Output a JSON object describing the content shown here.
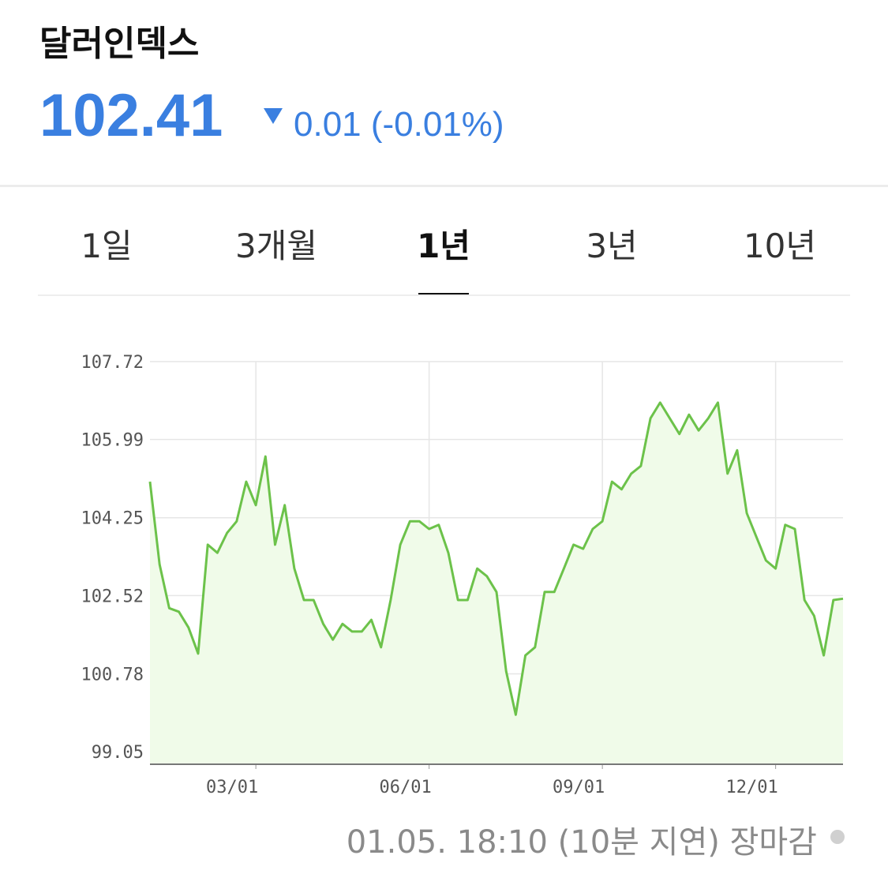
{
  "header": {
    "title": "달러인덱스",
    "price": "102.41",
    "change": "0.01 (-0.01%)"
  },
  "tabs": [
    "1일",
    "3개월",
    "1년",
    "3년",
    "10년"
  ],
  "selected_tab": 2,
  "chart_data": {
    "type": "area",
    "categories": [
      null,
      null,
      null,
      null,
      null,
      null,
      null,
      null,
      null,
      null,
      null,
      "03/01",
      null,
      null,
      null,
      null,
      null,
      null,
      null,
      null,
      null,
      null,
      null,
      null,
      null,
      null,
      null,
      null,
      null,
      "06/01",
      null,
      null,
      null,
      null,
      null,
      null,
      null,
      null,
      null,
      null,
      null,
      null,
      null,
      null,
      null,
      null,
      null,
      "09/01",
      null,
      null,
      null,
      null,
      null,
      null,
      null,
      null,
      null,
      null,
      null,
      null,
      null,
      null,
      null,
      null,
      null,
      "12/01",
      null,
      null,
      null,
      null,
      null,
      null,
      null
    ],
    "values": [
      105.05,
      103.21,
      102.24,
      102.16,
      101.81,
      101.23,
      103.65,
      103.47,
      103.91,
      104.17,
      105.05,
      104.53,
      105.61,
      103.65,
      104.53,
      103.12,
      102.42,
      102.42,
      101.89,
      101.54,
      101.89,
      101.72,
      101.72,
      101.98,
      101.37,
      102.42,
      103.65,
      104.17,
      104.17,
      104.0,
      104.09,
      103.47,
      102.42,
      102.42,
      103.12,
      102.95,
      102.6,
      100.84,
      99.87,
      101.19,
      101.37,
      102.6,
      102.6,
      103.12,
      103.65,
      103.56,
      104.0,
      104.17,
      105.05,
      104.88,
      105.23,
      105.4,
      106.46,
      106.81,
      106.46,
      106.11,
      106.54,
      106.19,
      106.46,
      106.81,
      105.23,
      105.75,
      104.35,
      103.82,
      103.3,
      103.12,
      104.09,
      104.0,
      102.42,
      102.07,
      101.19,
      102.42,
      102.45
    ],
    "color": "#6cc24a",
    "fill": "#f0fbe9",
    "ylim": [
      98.77,
      107.72
    ],
    "yticks": [
      99.05,
      100.78,
      102.52,
      104.25,
      105.99,
      107.72
    ],
    "grid": true
  },
  "footer": {
    "status": "01.05. 18:10 (10분 지연) 장마감"
  }
}
